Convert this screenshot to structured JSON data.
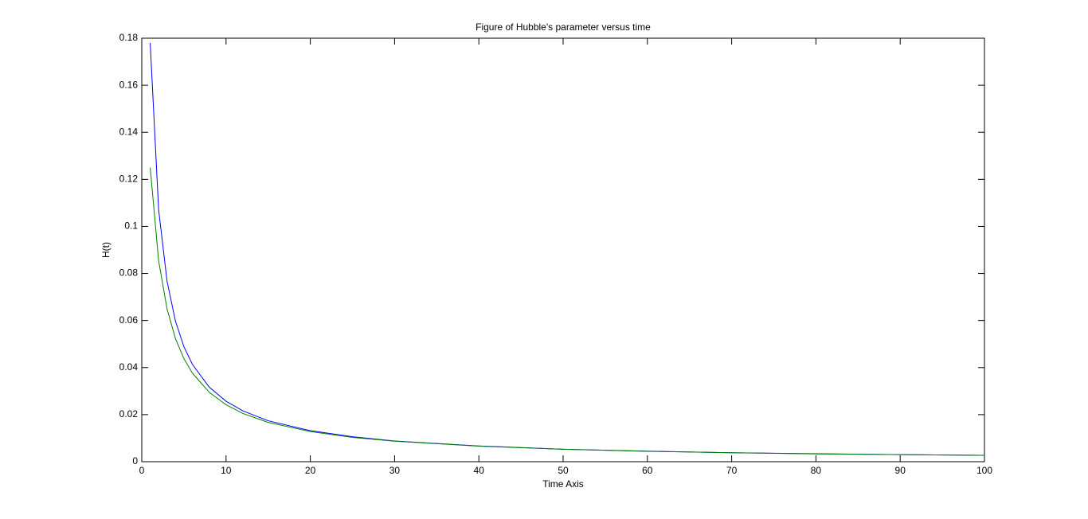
{
  "chart_data": {
    "type": "line",
    "title": "Figure of Hubble's parameter versus time",
    "xlabel": "Time Axis",
    "ylabel": "H(t)",
    "x": [
      1,
      2,
      3,
      4,
      5,
      6,
      8,
      10,
      12,
      15,
      20,
      25,
      30,
      40,
      50,
      60,
      70,
      80,
      90,
      100
    ],
    "series": [
      {
        "color": "#0000ff",
        "values": [
          0.178,
          0.1071,
          0.0767,
          0.0597,
          0.0489,
          0.0414,
          0.0317,
          0.0257,
          0.0216,
          0.0174,
          0.0132,
          0.0106,
          0.0088,
          0.0067,
          0.0053,
          0.0045,
          0.0038,
          0.0034,
          0.003,
          0.0027
        ]
      },
      {
        "color": "#008000",
        "values": [
          0.125,
          0.0854,
          0.0649,
          0.0523,
          0.0438,
          0.0377,
          0.0295,
          0.0242,
          0.0205,
          0.0167,
          0.0128,
          0.0103,
          0.0087,
          0.0066,
          0.0053,
          0.0044,
          0.0038,
          0.0033,
          0.003,
          0.0027
        ]
      }
    ],
    "xlim": [
      0,
      100
    ],
    "xticks": [
      0,
      10,
      20,
      30,
      40,
      50,
      60,
      70,
      80,
      90,
      100
    ],
    "ylim": [
      0,
      0.18
    ],
    "yticks": [
      0,
      0.02,
      0.04,
      0.06,
      0.08,
      0.1,
      0.12,
      0.14,
      0.16,
      0.18
    ],
    "grid": false
  }
}
